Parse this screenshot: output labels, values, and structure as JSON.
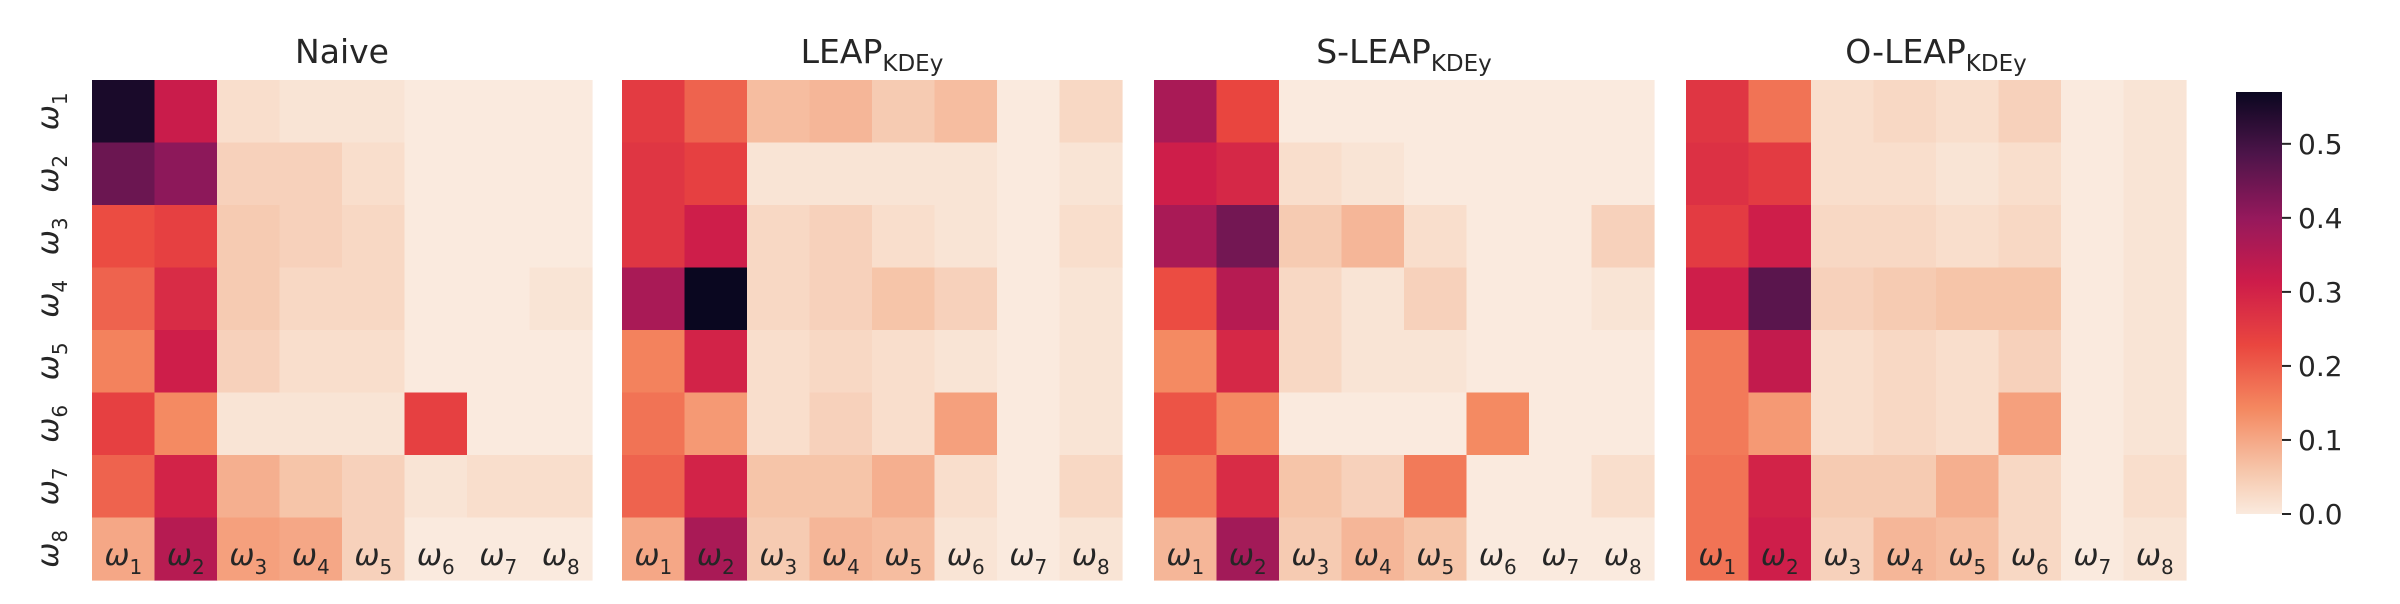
{
  "chart_data": {
    "type": "heatmap",
    "colormap": "rocket_r",
    "vmin": 0.0,
    "vmax": 0.57,
    "colorbar": {
      "ticks": [
        0.0,
        0.1,
        0.2,
        0.3,
        0.4,
        0.5
      ],
      "tick_labels": [
        "0.0",
        "0.1",
        "0.2",
        "0.3",
        "0.4",
        "0.5"
      ]
    },
    "row_labels": [
      {
        "base": "ω",
        "sub": "1"
      },
      {
        "base": "ω",
        "sub": "2"
      },
      {
        "base": "ω",
        "sub": "3"
      },
      {
        "base": "ω",
        "sub": "4"
      },
      {
        "base": "ω",
        "sub": "5"
      },
      {
        "base": "ω",
        "sub": "6"
      },
      {
        "base": "ω",
        "sub": "7"
      },
      {
        "base": "ω",
        "sub": "8"
      }
    ],
    "col_labels": [
      {
        "base": "ω",
        "sub": "1"
      },
      {
        "base": "ω",
        "sub": "2"
      },
      {
        "base": "ω",
        "sub": "3"
      },
      {
        "base": "ω",
        "sub": "4"
      },
      {
        "base": "ω",
        "sub": "5"
      },
      {
        "base": "ω",
        "sub": "6"
      },
      {
        "base": "ω",
        "sub": "7"
      },
      {
        "base": "ω",
        "sub": "8"
      }
    ],
    "panels": [
      {
        "title": "Naive",
        "title_sub": "",
        "values": [
          [
            0.55,
            0.32,
            0.02,
            0.01,
            0.01,
            0.0,
            0.0,
            0.0
          ],
          [
            0.45,
            0.41,
            0.04,
            0.04,
            0.02,
            0.0,
            0.0,
            0.0
          ],
          [
            0.22,
            0.24,
            0.05,
            0.04,
            0.03,
            0.0,
            0.0,
            0.0
          ],
          [
            0.19,
            0.28,
            0.05,
            0.03,
            0.03,
            0.0,
            0.0,
            0.01
          ],
          [
            0.15,
            0.31,
            0.04,
            0.02,
            0.02,
            0.0,
            0.0,
            0.0
          ],
          [
            0.24,
            0.14,
            0.01,
            0.01,
            0.01,
            0.24,
            0.0,
            0.0
          ],
          [
            0.19,
            0.3,
            0.09,
            0.06,
            0.04,
            0.01,
            0.02,
            0.02
          ],
          [
            0.1,
            0.35,
            0.11,
            0.1,
            0.04,
            0.0,
            0.0,
            0.0
          ]
        ]
      },
      {
        "title": "LEAP",
        "title_sub": "KDEy",
        "values": [
          [
            0.25,
            0.19,
            0.07,
            0.08,
            0.05,
            0.07,
            0.0,
            0.03
          ],
          [
            0.26,
            0.24,
            0.01,
            0.01,
            0.01,
            0.01,
            0.0,
            0.01
          ],
          [
            0.26,
            0.31,
            0.03,
            0.04,
            0.02,
            0.01,
            0.0,
            0.02
          ],
          [
            0.37,
            0.57,
            0.03,
            0.04,
            0.06,
            0.04,
            0.0,
            0.01
          ],
          [
            0.15,
            0.3,
            0.02,
            0.03,
            0.02,
            0.01,
            0.0,
            0.01
          ],
          [
            0.17,
            0.12,
            0.02,
            0.04,
            0.02,
            0.11,
            0.0,
            0.01
          ],
          [
            0.19,
            0.3,
            0.06,
            0.06,
            0.09,
            0.02,
            0.0,
            0.03
          ],
          [
            0.1,
            0.37,
            0.05,
            0.08,
            0.07,
            0.01,
            0.0,
            0.01
          ]
        ]
      },
      {
        "title": "S-LEAP",
        "title_sub": "KDEy",
        "values": [
          [
            0.37,
            0.23,
            0.0,
            0.0,
            0.0,
            0.0,
            0.0,
            0.0
          ],
          [
            0.31,
            0.29,
            0.02,
            0.01,
            0.0,
            0.0,
            0.0,
            0.0
          ],
          [
            0.37,
            0.44,
            0.05,
            0.08,
            0.02,
            0.0,
            0.0,
            0.04
          ],
          [
            0.22,
            0.35,
            0.03,
            0.01,
            0.04,
            0.0,
            0.0,
            0.01
          ],
          [
            0.14,
            0.29,
            0.03,
            0.01,
            0.01,
            0.0,
            0.0,
            0.0
          ],
          [
            0.21,
            0.14,
            0.0,
            0.0,
            0.0,
            0.14,
            0.0,
            0.0
          ],
          [
            0.16,
            0.28,
            0.06,
            0.04,
            0.16,
            0.0,
            0.0,
            0.02
          ],
          [
            0.08,
            0.38,
            0.05,
            0.08,
            0.06,
            0.0,
            0.0,
            0.0
          ]
        ]
      },
      {
        "title": "O-LEAP",
        "title_sub": "KDEy",
        "values": [
          [
            0.26,
            0.17,
            0.02,
            0.03,
            0.02,
            0.04,
            0.0,
            0.01
          ],
          [
            0.27,
            0.25,
            0.02,
            0.02,
            0.01,
            0.02,
            0.0,
            0.01
          ],
          [
            0.25,
            0.31,
            0.03,
            0.03,
            0.02,
            0.03,
            0.0,
            0.01
          ],
          [
            0.31,
            0.47,
            0.04,
            0.05,
            0.06,
            0.06,
            0.0,
            0.01
          ],
          [
            0.16,
            0.33,
            0.02,
            0.03,
            0.02,
            0.04,
            0.0,
            0.01
          ],
          [
            0.16,
            0.12,
            0.02,
            0.03,
            0.02,
            0.11,
            0.0,
            0.01
          ],
          [
            0.17,
            0.3,
            0.05,
            0.05,
            0.09,
            0.03,
            0.0,
            0.02
          ],
          [
            0.17,
            0.31,
            0.04,
            0.08,
            0.07,
            0.03,
            0.0,
            0.01
          ]
        ]
      }
    ]
  }
}
